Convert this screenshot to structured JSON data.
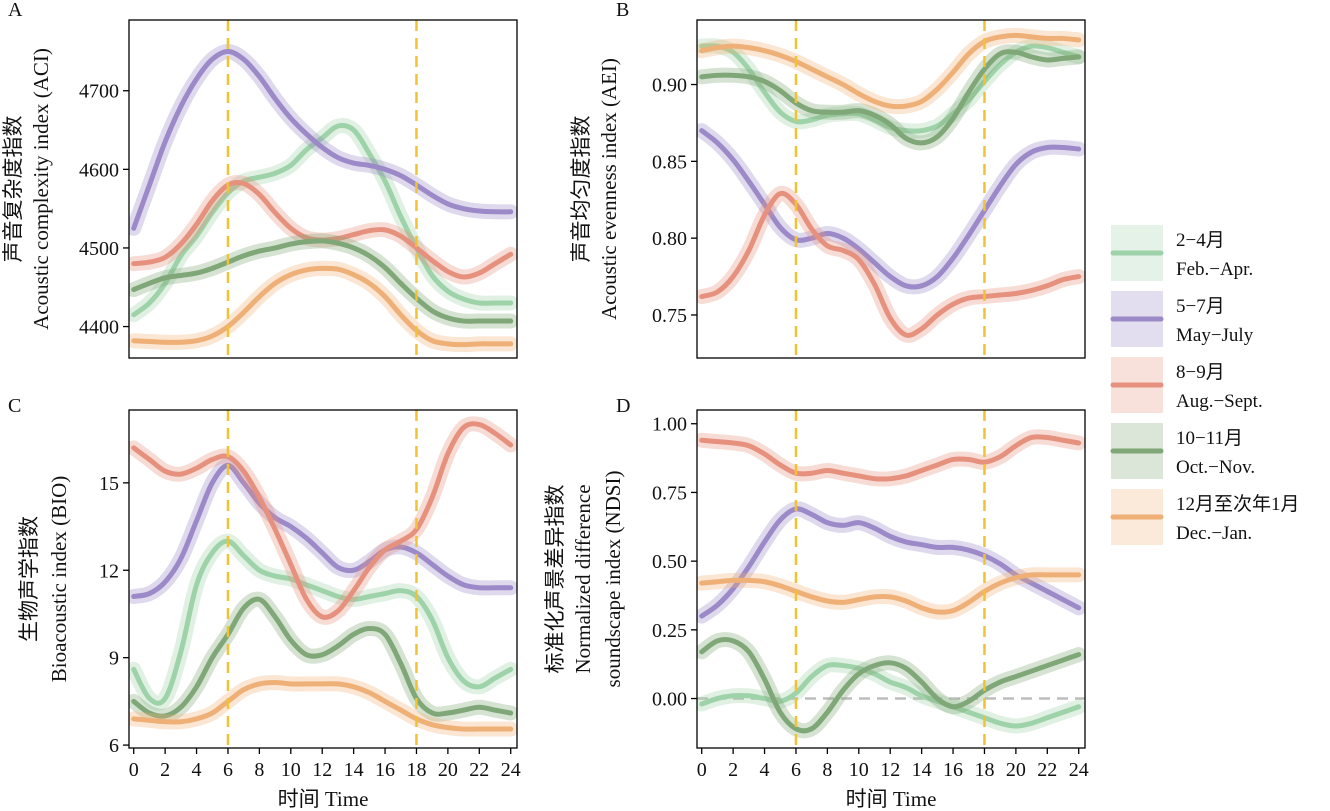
{
  "colors": {
    "feb_apr": "#9ed2a9",
    "may_july": "#9c89c7",
    "aug_sept": "#e6917e",
    "oct_nov": "#7fa777",
    "dec_jan": "#efb077",
    "vline": "#f1c232",
    "zero_line": "#bdbdbd"
  },
  "legend": {
    "position": "right",
    "items": [
      {
        "key": "feb_apr",
        "label_cn": "2−4月",
        "label_en": "Feb.−Apr."
      },
      {
        "key": "may_july",
        "label_cn": "5−7月",
        "label_en": "May−July"
      },
      {
        "key": "aug_sept",
        "label_cn": "8−9月",
        "label_en": "Aug.−Sept."
      },
      {
        "key": "oct_nov",
        "label_cn": "10−11月",
        "label_en": "Oct.−Nov."
      },
      {
        "key": "dec_jan",
        "label_cn": "12月至次年1月",
        "label_en": "Dec.−Jan."
      }
    ]
  },
  "x_ticks": [
    "0",
    "2",
    "4",
    "6",
    "8",
    "10",
    "12",
    "14",
    "16",
    "18",
    "20",
    "22",
    "24"
  ],
  "xlabel": "时间 Time",
  "chart_data": [
    {
      "panel": "A",
      "type": "line",
      "ylabel": [
        "声音复杂度指数",
        "Acoustic complexity index (ACI)"
      ],
      "xlabel": "",
      "show_xticks": false,
      "xlim": [
        -0.3,
        24.4
      ],
      "ylim": [
        4360,
        4790
      ],
      "yticks": [
        4400,
        4500,
        4600,
        4700
      ],
      "ytick_labels": [
        "4400",
        "4500",
        "4600",
        "4700"
      ],
      "vlines": [
        6,
        18
      ],
      "zero_line": false,
      "x": [
        0,
        1,
        2,
        3,
        4,
        5,
        6,
        7,
        8,
        9,
        10,
        11,
        12,
        13,
        14,
        15,
        16,
        17,
        18,
        19,
        20,
        21,
        22,
        23,
        24
      ],
      "series": [
        {
          "key": "feb_apr",
          "values": [
            4415,
            4430,
            4455,
            4490,
            4515,
            4545,
            4570,
            4585,
            4590,
            4595,
            4605,
            4625,
            4640,
            4655,
            4650,
            4620,
            4585,
            4540,
            4500,
            4465,
            4445,
            4435,
            4430,
            4430,
            4430
          ]
        },
        {
          "key": "may_july",
          "values": [
            4525,
            4580,
            4635,
            4680,
            4715,
            4740,
            4750,
            4740,
            4718,
            4690,
            4665,
            4645,
            4628,
            4615,
            4608,
            4605,
            4600,
            4592,
            4580,
            4567,
            4556,
            4550,
            4547,
            4546,
            4546
          ]
        },
        {
          "key": "aug_sept",
          "values": [
            4480,
            4482,
            4488,
            4505,
            4530,
            4560,
            4580,
            4582,
            4568,
            4545,
            4525,
            4513,
            4510,
            4512,
            4517,
            4522,
            4523,
            4515,
            4500,
            4484,
            4470,
            4463,
            4468,
            4480,
            4492
          ]
        },
        {
          "key": "oct_nov",
          "values": [
            4447,
            4455,
            4462,
            4465,
            4468,
            4474,
            4482,
            4490,
            4496,
            4500,
            4505,
            4508,
            4509,
            4506,
            4500,
            4490,
            4475,
            4455,
            4436,
            4420,
            4411,
            4407,
            4407,
            4407,
            4407
          ]
        },
        {
          "key": "dec_jan",
          "values": [
            4382,
            4381,
            4380,
            4380,
            4382,
            4388,
            4400,
            4418,
            4438,
            4455,
            4466,
            4472,
            4474,
            4473,
            4466,
            4455,
            4438,
            4415,
            4395,
            4382,
            4378,
            4377,
            4378,
            4378,
            4378
          ]
        }
      ]
    },
    {
      "panel": "B",
      "type": "line",
      "ylabel": [
        "声音均匀度指数",
        "Acoustic evenness index (AEI)"
      ],
      "xlabel": "",
      "show_xticks": false,
      "xlim": [
        -0.3,
        24.4
      ],
      "ylim": [
        0.722,
        0.942
      ],
      "yticks": [
        0.75,
        0.8,
        0.85,
        0.9
      ],
      "ytick_labels": [
        "0.75",
        "0.80",
        "0.85",
        "0.90"
      ],
      "vlines": [
        6,
        18
      ],
      "zero_line": false,
      "x": [
        0,
        1,
        2,
        3,
        4,
        5,
        6,
        7,
        8,
        9,
        10,
        11,
        12,
        13,
        14,
        15,
        16,
        17,
        18,
        19,
        20,
        21,
        22,
        23,
        24
      ],
      "series": [
        {
          "key": "feb_apr",
          "values": [
            0.925,
            0.925,
            0.921,
            0.91,
            0.895,
            0.882,
            0.876,
            0.877,
            0.88,
            0.881,
            0.881,
            0.877,
            0.872,
            0.87,
            0.87,
            0.873,
            0.881,
            0.89,
            0.902,
            0.913,
            0.921,
            0.925,
            0.924,
            0.921,
            0.918
          ]
        },
        {
          "key": "may_july",
          "values": [
            0.87,
            0.862,
            0.851,
            0.837,
            0.822,
            0.807,
            0.799,
            0.8,
            0.803,
            0.8,
            0.793,
            0.784,
            0.775,
            0.769,
            0.769,
            0.775,
            0.787,
            0.802,
            0.818,
            0.834,
            0.848,
            0.856,
            0.859,
            0.859,
            0.858
          ]
        },
        {
          "key": "aug_sept",
          "values": [
            0.762,
            0.765,
            0.775,
            0.792,
            0.815,
            0.829,
            0.822,
            0.806,
            0.795,
            0.792,
            0.786,
            0.77,
            0.748,
            0.737,
            0.741,
            0.75,
            0.757,
            0.761,
            0.762,
            0.763,
            0.764,
            0.766,
            0.769,
            0.773,
            0.775
          ]
        },
        {
          "key": "oct_nov",
          "values": [
            0.905,
            0.906,
            0.906,
            0.905,
            0.902,
            0.896,
            0.888,
            0.883,
            0.882,
            0.882,
            0.883,
            0.88,
            0.874,
            0.865,
            0.862,
            0.866,
            0.878,
            0.895,
            0.91,
            0.92,
            0.921,
            0.918,
            0.916,
            0.917,
            0.918
          ]
        },
        {
          "key": "dec_jan",
          "values": [
            0.922,
            0.924,
            0.925,
            0.924,
            0.922,
            0.919,
            0.915,
            0.91,
            0.905,
            0.9,
            0.894,
            0.889,
            0.886,
            0.886,
            0.889,
            0.897,
            0.908,
            0.92,
            0.928,
            0.931,
            0.932,
            0.931,
            0.93,
            0.93,
            0.929
          ]
        }
      ]
    },
    {
      "panel": "C",
      "type": "line",
      "ylabel": [
        "生物声学指数",
        "Bioacoustic index (BIO)"
      ],
      "xlabel": "时间 Time",
      "show_xticks": true,
      "xlim": [
        -0.3,
        24.4
      ],
      "ylim": [
        5.9,
        17.5
      ],
      "yticks": [
        6,
        9,
        12,
        15
      ],
      "ytick_labels": [
        "6",
        "9",
        "12",
        "15"
      ],
      "vlines": [
        6,
        18
      ],
      "zero_line": false,
      "x": [
        0,
        1,
        2,
        3,
        4,
        5,
        6,
        7,
        8,
        9,
        10,
        11,
        12,
        13,
        14,
        15,
        16,
        17,
        18,
        19,
        20,
        21,
        22,
        23,
        24
      ],
      "series": [
        {
          "key": "feb_apr",
          "values": [
            8.6,
            7.6,
            7.6,
            9.2,
            11.5,
            12.6,
            13.0,
            12.5,
            12.0,
            11.8,
            11.7,
            11.5,
            11.3,
            11.1,
            11.0,
            11.1,
            11.2,
            11.3,
            11.1,
            10.3,
            9.0,
            8.2,
            8.0,
            8.3,
            8.6
          ]
        },
        {
          "key": "may_july",
          "values": [
            11.1,
            11.2,
            11.6,
            12.4,
            13.7,
            15.0,
            15.6,
            15.0,
            14.3,
            13.8,
            13.5,
            13.1,
            12.6,
            12.1,
            12.0,
            12.3,
            12.7,
            12.8,
            12.6,
            12.2,
            11.8,
            11.5,
            11.4,
            11.4,
            11.4
          ]
        },
        {
          "key": "aug_sept",
          "values": [
            16.2,
            15.8,
            15.4,
            15.3,
            15.5,
            15.8,
            15.9,
            15.4,
            14.5,
            13.4,
            12.2,
            11.0,
            10.4,
            10.6,
            11.3,
            12.1,
            12.7,
            13.0,
            13.4,
            14.5,
            16.0,
            16.9,
            17.0,
            16.7,
            16.3
          ]
        },
        {
          "key": "oct_nov",
          "values": [
            7.5,
            7.1,
            7.0,
            7.3,
            8.0,
            9.0,
            9.8,
            10.7,
            11.0,
            10.4,
            9.6,
            9.1,
            9.1,
            9.4,
            9.8,
            10.0,
            9.8,
            8.8,
            7.6,
            7.1,
            7.1,
            7.2,
            7.3,
            7.2,
            7.1
          ]
        },
        {
          "key": "dec_jan",
          "values": [
            6.9,
            6.85,
            6.8,
            6.8,
            6.9,
            7.1,
            7.5,
            7.9,
            8.1,
            8.15,
            8.1,
            8.1,
            8.1,
            8.1,
            8.0,
            7.8,
            7.5,
            7.2,
            6.9,
            6.7,
            6.6,
            6.55,
            6.55,
            6.55,
            6.55
          ]
        }
      ]
    },
    {
      "panel": "D",
      "type": "line",
      "ylabel": [
        "标准化声景差异指数",
        "Normalized difference",
        "soundscape index (NDSI)"
      ],
      "xlabel": "时间 Time",
      "show_xticks": true,
      "xlim": [
        -0.3,
        24.4
      ],
      "ylim": [
        -0.18,
        1.05
      ],
      "yticks": [
        0.0,
        0.25,
        0.5,
        0.75,
        1.0
      ],
      "ytick_labels": [
        "0.00",
        "0.25",
        "0.50",
        "0.75",
        "1.00"
      ],
      "vlines": [
        6,
        18
      ],
      "zero_line": true,
      "x": [
        0,
        1,
        2,
        3,
        4,
        5,
        6,
        7,
        8,
        9,
        10,
        11,
        12,
        13,
        14,
        15,
        16,
        17,
        18,
        19,
        20,
        21,
        22,
        23,
        24
      ],
      "series": [
        {
          "key": "feb_apr",
          "values": [
            -0.02,
            0.0,
            0.01,
            0.01,
            0.0,
            -0.01,
            0.02,
            0.08,
            0.12,
            0.12,
            0.11,
            0.09,
            0.06,
            0.04,
            0.01,
            -0.01,
            -0.03,
            -0.05,
            -0.07,
            -0.09,
            -0.1,
            -0.09,
            -0.07,
            -0.05,
            -0.03
          ]
        },
        {
          "key": "may_july",
          "values": [
            0.3,
            0.34,
            0.4,
            0.48,
            0.57,
            0.65,
            0.69,
            0.67,
            0.64,
            0.63,
            0.64,
            0.62,
            0.59,
            0.57,
            0.56,
            0.55,
            0.55,
            0.54,
            0.52,
            0.49,
            0.45,
            0.42,
            0.39,
            0.36,
            0.33
          ]
        },
        {
          "key": "aug_sept",
          "values": [
            0.94,
            0.935,
            0.93,
            0.92,
            0.89,
            0.85,
            0.82,
            0.82,
            0.83,
            0.82,
            0.81,
            0.8,
            0.8,
            0.81,
            0.83,
            0.85,
            0.87,
            0.87,
            0.86,
            0.88,
            0.92,
            0.95,
            0.95,
            0.94,
            0.93
          ]
        },
        {
          "key": "oct_nov",
          "values": [
            0.17,
            0.21,
            0.21,
            0.17,
            0.07,
            -0.05,
            -0.11,
            -0.11,
            -0.05,
            0.03,
            0.09,
            0.12,
            0.13,
            0.11,
            0.06,
            0.0,
            -0.03,
            -0.01,
            0.03,
            0.06,
            0.08,
            0.1,
            0.12,
            0.14,
            0.16
          ]
        },
        {
          "key": "dec_jan",
          "values": [
            0.42,
            0.425,
            0.43,
            0.43,
            0.425,
            0.41,
            0.39,
            0.37,
            0.355,
            0.35,
            0.36,
            0.37,
            0.37,
            0.355,
            0.33,
            0.315,
            0.32,
            0.35,
            0.39,
            0.42,
            0.44,
            0.45,
            0.45,
            0.45,
            0.45
          ]
        }
      ]
    }
  ]
}
